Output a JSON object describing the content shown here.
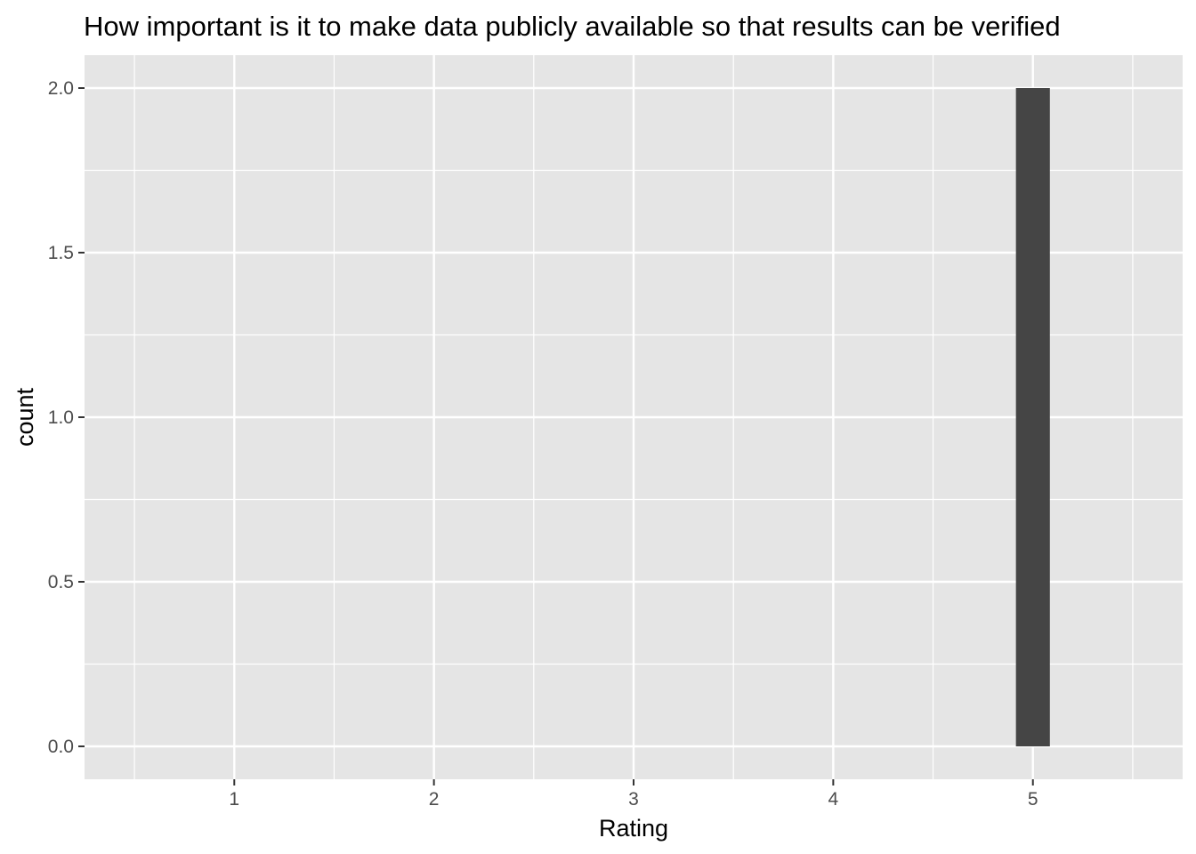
{
  "chart_data": {
    "type": "bar",
    "title": "How important is it to make data publicly available so that results can be verified",
    "xlabel": "Rating",
    "ylabel": "count",
    "x_ticks": [
      "1",
      "2",
      "3",
      "4",
      "5"
    ],
    "y_ticks": [
      "0.0",
      "0.5",
      "1.0",
      "1.5",
      "2.0"
    ],
    "xlim": [
      0.25,
      5.75
    ],
    "ylim": [
      -0.1,
      2.1
    ],
    "grid": true,
    "bars": [
      {
        "x": 5,
        "value": 2
      }
    ],
    "colors": {
      "panel_background": "#e5e5e5",
      "grid": "#ffffff",
      "bar": "#454545",
      "tick_label": "#4d4d4d",
      "tick": "#333333"
    }
  }
}
